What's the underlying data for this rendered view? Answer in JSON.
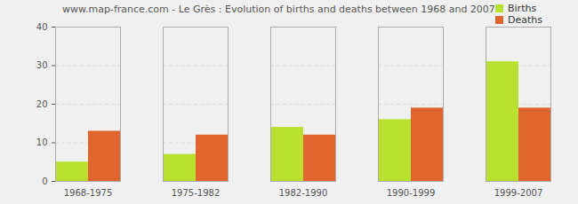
{
  "chart_data": {
    "type": "bar",
    "title": "www.map-france.com - Le Grès : Evolution of births and deaths between 1968 and 2007",
    "categories": [
      "1968-1975",
      "1975-1982",
      "1982-1990",
      "1990-1999",
      "1999-2007"
    ],
    "series": [
      {
        "name": "Births",
        "color": "#b9e02f",
        "values": [
          5,
          7,
          14,
          16,
          31
        ]
      },
      {
        "name": "Deaths",
        "color": "#e0642e",
        "values": [
          13,
          12,
          12,
          19,
          19
        ]
      }
    ],
    "ylim": [
      0,
      40
    ],
    "yticks": [
      0,
      10,
      20,
      30,
      40
    ],
    "grid": true,
    "legend": "top-right"
  }
}
